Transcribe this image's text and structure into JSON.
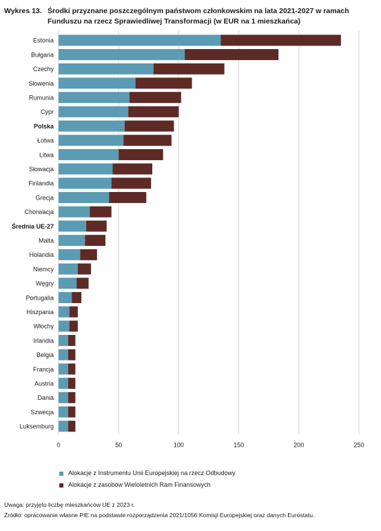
{
  "title": {
    "label": "Wykres 13.",
    "line1": "Środki przyznane poszczególnym państwom członkowskim na lata 2021-2027 w ramach",
    "line2": "Funduszu na rzecz Sprawiedliwej Transformacji (w EUR na 1 mieszkańca)"
  },
  "colors": {
    "series1": "#5b9bb3",
    "series2": "#5e2a25",
    "grid": "#d9d9d9"
  },
  "chart_data": {
    "type": "bar",
    "orientation": "horizontal",
    "stacked": true,
    "categories": [
      "Estonia",
      "Bułgaria",
      "Czechy",
      "Słowenia",
      "Rumunia",
      "Cypr",
      "Polska",
      "Łotwa",
      "Litwa",
      "Słowacja",
      "Finlandia",
      "Grecja",
      "Chorwacja",
      "Średnia UE-27",
      "Malta",
      "Holandia",
      "Niemcy",
      "Węgry",
      "Portugalia",
      "Hiszpania",
      "Włochy",
      "Irlandia",
      "Belgia",
      "Francja",
      "Austria",
      "Dania",
      "Szwecja",
      "Luksemburg"
    ],
    "bold_categories": [
      "Polska",
      "Średnia UE-27"
    ],
    "series": [
      {
        "name": "Alokacje z Instrumentu Unii Europejskiej na rzecz Odbudowy",
        "values": [
          135,
          105,
          79,
          64,
          59,
          58,
          55,
          54,
          50,
          45,
          44,
          42,
          26,
          23,
          22,
          18,
          16,
          15,
          11,
          9,
          9,
          8,
          8,
          8,
          8,
          8,
          8,
          8
        ]
      },
      {
        "name": "Alokacje z zasobów Wieloletnich Ram Finansowych",
        "values": [
          100,
          78,
          59,
          47,
          43,
          42,
          41,
          40,
          37,
          33,
          33,
          31,
          18,
          17,
          17,
          14,
          11,
          10,
          8,
          7,
          7,
          6,
          6,
          6,
          6,
          6,
          6,
          6
        ]
      }
    ],
    "xlim": [
      0,
      250
    ],
    "xticks": [
      "0",
      "50",
      "100",
      "150",
      "200",
      "250"
    ],
    "grid": true,
    "legend_position": "bottom-left"
  },
  "notes": {
    "note": "Uwaga: przyjęto liczbę mieszkańców UE z 2023 r.",
    "source": "Źródło: opracowanie własne PIE na podstawie rozporządzenia 2021/1056 Komisji Europejskiej oraz danych Eurostatu."
  }
}
